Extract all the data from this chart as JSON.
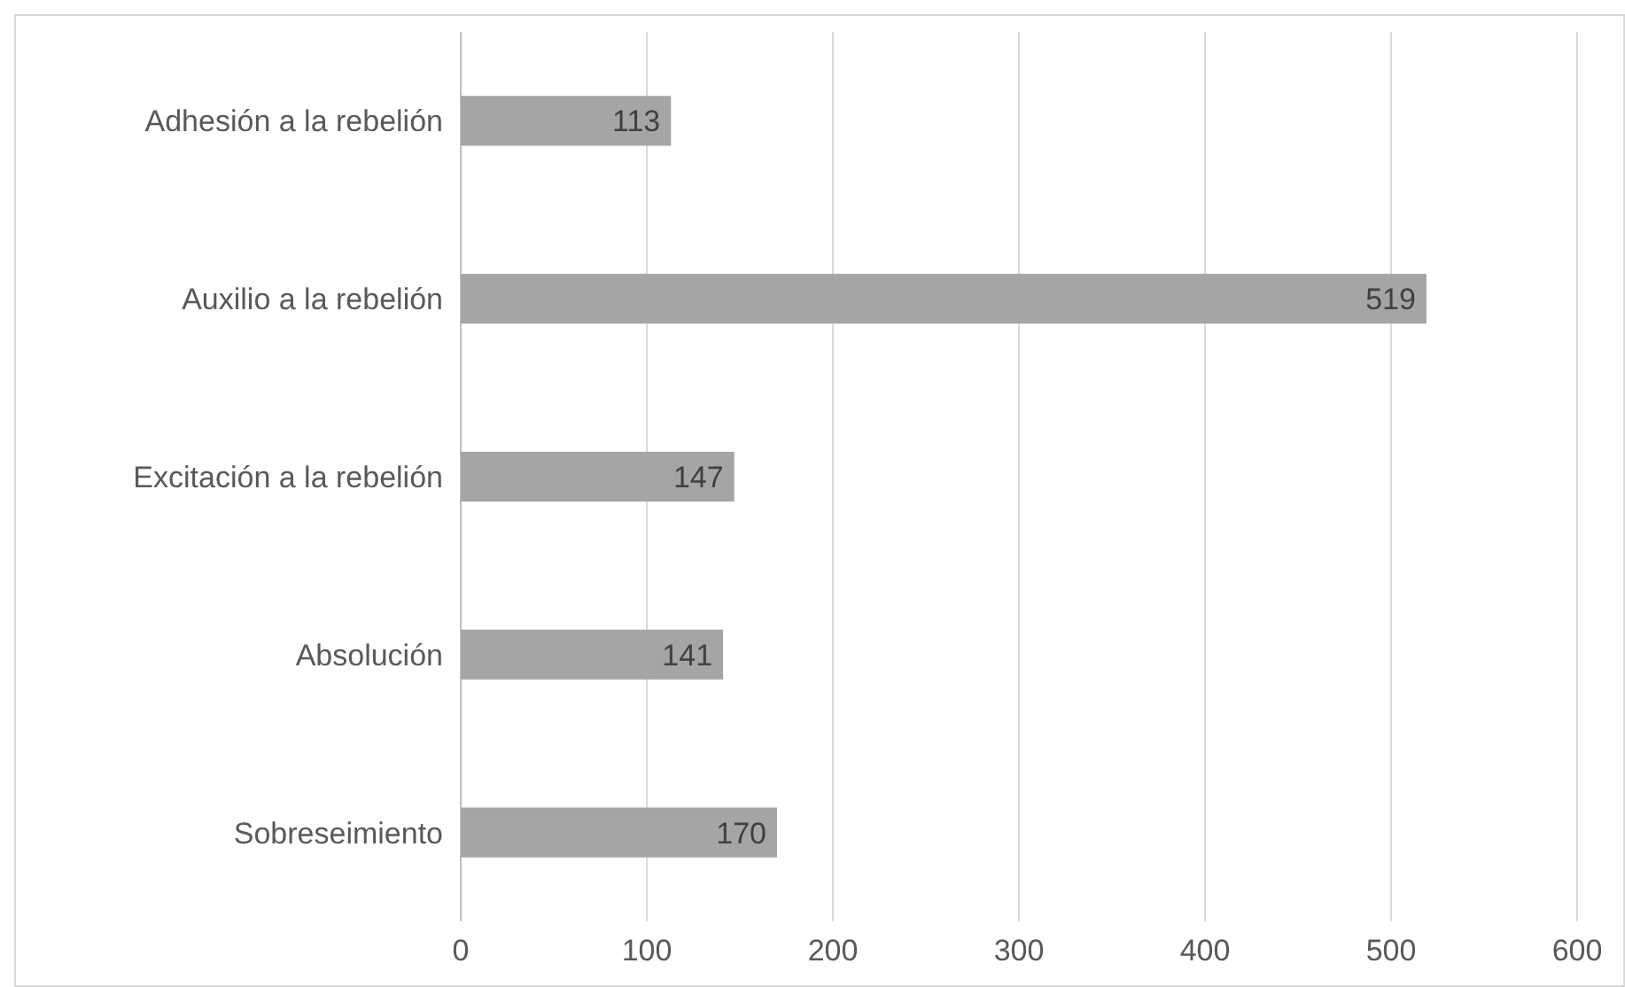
{
  "chart_data": {
    "type": "bar",
    "orientation": "horizontal",
    "categories": [
      "Adhesión a la rebelión",
      "Auxilio a la rebelión",
      "Excitación a la rebelión",
      "Absolución",
      "Sobreseimiento"
    ],
    "values": [
      113,
      519,
      147,
      141,
      170
    ],
    "color": "#a5a5a5",
    "xlim": [
      0,
      600
    ],
    "xticks": [
      0,
      100,
      200,
      300,
      400,
      500,
      600
    ],
    "grid": "x",
    "data_labels": true
  }
}
